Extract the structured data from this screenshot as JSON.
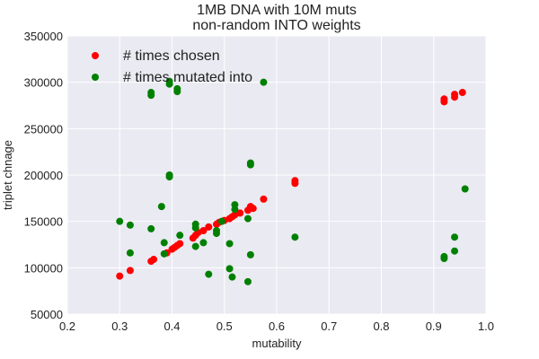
{
  "chart_data": {
    "type": "scatter",
    "title_lines": [
      "1MB DNA with 10M muts",
      "non-random INTO weights"
    ],
    "xlabel": "mutability",
    "ylabel": "triplet chnage",
    "xlim": [
      0.2,
      1.0
    ],
    "ylim": [
      50000,
      350000
    ],
    "xticks": [
      0.2,
      0.3,
      0.4,
      0.5,
      0.6,
      0.7,
      0.8,
      0.9,
      1.0
    ],
    "xtick_labels": [
      "0.2",
      "0.3",
      "0.4",
      "0.5",
      "0.6",
      "0.7",
      "0.8",
      "0.9",
      "1.0"
    ],
    "yticks": [
      50000,
      100000,
      150000,
      200000,
      250000,
      300000,
      350000
    ],
    "ytick_labels": [
      "50000",
      "100000",
      "150000",
      "200000",
      "250000",
      "300000",
      "350000"
    ],
    "grid": true,
    "legend_position": "top-left",
    "series": [
      {
        "name": "# times chosen",
        "color": "#ff0000",
        "points": [
          [
            0.3,
            91000
          ],
          [
            0.32,
            97000
          ],
          [
            0.36,
            107000
          ],
          [
            0.365,
            109000
          ],
          [
            0.39,
            116000
          ],
          [
            0.4,
            120000
          ],
          [
            0.405,
            122000
          ],
          [
            0.41,
            124000
          ],
          [
            0.415,
            126000
          ],
          [
            0.44,
            132000
          ],
          [
            0.445,
            135000
          ],
          [
            0.45,
            138000
          ],
          [
            0.46,
            140000
          ],
          [
            0.47,
            144000
          ],
          [
            0.485,
            147000
          ],
          [
            0.49,
            149000
          ],
          [
            0.5,
            151000
          ],
          [
            0.51,
            153000
          ],
          [
            0.515,
            155000
          ],
          [
            0.52,
            157000
          ],
          [
            0.53,
            159000
          ],
          [
            0.545,
            162000
          ],
          [
            0.55,
            166000
          ],
          [
            0.555,
            164000
          ],
          [
            0.575,
            174000
          ],
          [
            0.635,
            191000
          ],
          [
            0.635,
            194000
          ],
          [
            0.92,
            279000
          ],
          [
            0.92,
            282000
          ],
          [
            0.94,
            284000
          ],
          [
            0.94,
            287000
          ],
          [
            0.955,
            289000
          ]
        ]
      },
      {
        "name": "# times mutated into",
        "color": "#008000",
        "points": [
          [
            0.3,
            150000
          ],
          [
            0.32,
            146000
          ],
          [
            0.32,
            116000
          ],
          [
            0.36,
            142000
          ],
          [
            0.36,
            286000
          ],
          [
            0.36,
            289000
          ],
          [
            0.38,
            166000
          ],
          [
            0.385,
            127000
          ],
          [
            0.385,
            115000
          ],
          [
            0.395,
            198000
          ],
          [
            0.395,
            200000
          ],
          [
            0.395,
            298000
          ],
          [
            0.395,
            301000
          ],
          [
            0.41,
            290000
          ],
          [
            0.41,
            293000
          ],
          [
            0.415,
            135000
          ],
          [
            0.445,
            123000
          ],
          [
            0.445,
            143000
          ],
          [
            0.445,
            147000
          ],
          [
            0.46,
            127000
          ],
          [
            0.47,
            93000
          ],
          [
            0.485,
            137000
          ],
          [
            0.485,
            140000
          ],
          [
            0.495,
            150000
          ],
          [
            0.51,
            126000
          ],
          [
            0.51,
            99000
          ],
          [
            0.515,
            90000
          ],
          [
            0.52,
            163000
          ],
          [
            0.52,
            168000
          ],
          [
            0.545,
            85000
          ],
          [
            0.545,
            153000
          ],
          [
            0.55,
            114000
          ],
          [
            0.55,
            211000
          ],
          [
            0.55,
            213000
          ],
          [
            0.575,
            300000
          ],
          [
            0.635,
            133000
          ],
          [
            0.92,
            110000
          ],
          [
            0.92,
            112000
          ],
          [
            0.94,
            118000
          ],
          [
            0.94,
            133000
          ],
          [
            0.96,
            185000
          ]
        ]
      }
    ]
  }
}
